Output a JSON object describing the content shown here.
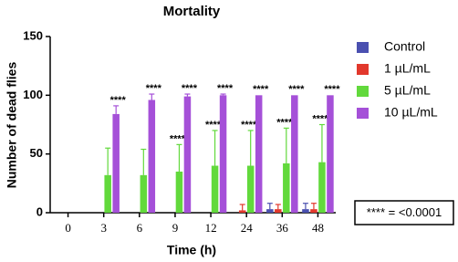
{
  "chart_data": {
    "type": "bar",
    "title": "Mortality",
    "x_label": "Time (h)",
    "y_label": "Number of dead flies",
    "categories": [
      "0",
      "3",
      "6",
      "9",
      "12",
      "24",
      "36",
      "48"
    ],
    "ylim": [
      0,
      150
    ],
    "yticks": [
      0,
      50,
      100,
      150
    ],
    "series": [
      {
        "name": "Control",
        "color": "#4a50b0",
        "values": [
          0,
          0,
          0,
          0,
          0,
          0,
          3,
          3
        ],
        "errors": [
          0,
          0,
          0,
          0,
          0,
          0,
          5,
          5
        ]
      },
      {
        "name": "1 µL/mL",
        "color": "#e2382c",
        "values": [
          0,
          0,
          0,
          0,
          0,
          2,
          3,
          3
        ],
        "errors": [
          0,
          0,
          0,
          0,
          0,
          5,
          4,
          5
        ]
      },
      {
        "name": "5 µL/mL",
        "color": "#62d93c",
        "values": [
          0,
          32,
          32,
          35,
          40,
          40,
          42,
          43
        ],
        "errors": [
          0,
          23,
          22,
          23,
          30,
          30,
          30,
          32
        ],
        "significance": [
          null,
          null,
          null,
          "****",
          "****",
          "****",
          "****",
          "****"
        ]
      },
      {
        "name": "10 µL/mL",
        "color": "#a550d8",
        "values": [
          0,
          84,
          96,
          99,
          100,
          100,
          100,
          100
        ],
        "errors": [
          0,
          7,
          5,
          2,
          1,
          0,
          0,
          0
        ],
        "significance": [
          null,
          "****",
          "****",
          "****",
          "****",
          "****",
          "****",
          "****"
        ]
      }
    ],
    "note": "**** = <0.0001"
  }
}
